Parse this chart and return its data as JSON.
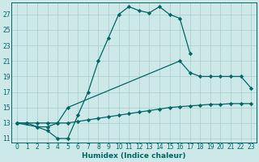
{
  "xlabel": "Humidex (Indice chaleur)",
  "bg_color": "#cce8e8",
  "line_color": "#006666",
  "grid_color": "#aacccc",
  "xlim": [
    -0.5,
    23.5
  ],
  "ylim": [
    10.5,
    28.5
  ],
  "xticks": [
    0,
    1,
    2,
    3,
    4,
    5,
    6,
    7,
    8,
    9,
    10,
    11,
    12,
    13,
    14,
    15,
    16,
    17,
    18,
    19,
    20,
    21,
    22,
    23
  ],
  "yticks": [
    11,
    13,
    15,
    17,
    19,
    21,
    23,
    25,
    27
  ],
  "line1_x": [
    0,
    1,
    2,
    3,
    4,
    5,
    6,
    7,
    8,
    9,
    10,
    11,
    12,
    13,
    14,
    15,
    16,
    17
  ],
  "line1_y": [
    13,
    13,
    12.5,
    12,
    11,
    11,
    14,
    17,
    21,
    24,
    27,
    28,
    27.5,
    27.2,
    28,
    27,
    26.5,
    22
  ],
  "line2_x": [
    0,
    2,
    3,
    4,
    5,
    16,
    17,
    18,
    19,
    20,
    21,
    22,
    23
  ],
  "line2_y": [
    13,
    12.5,
    12.5,
    13,
    15,
    21,
    19.5,
    19,
    19,
    19,
    19,
    19,
    17.5
  ],
  "line3_x": [
    0,
    1,
    2,
    3,
    4,
    5,
    6,
    7,
    8,
    9,
    10,
    11,
    12,
    13,
    14,
    15,
    16,
    17,
    18,
    19,
    20,
    21,
    22,
    23
  ],
  "line3_y": [
    13,
    13,
    13,
    13,
    13,
    13,
    13.2,
    13.4,
    13.6,
    13.8,
    14,
    14.2,
    14.4,
    14.6,
    14.8,
    15,
    15.1,
    15.2,
    15.3,
    15.4,
    15.4,
    15.5,
    15.5,
    15.5
  ]
}
